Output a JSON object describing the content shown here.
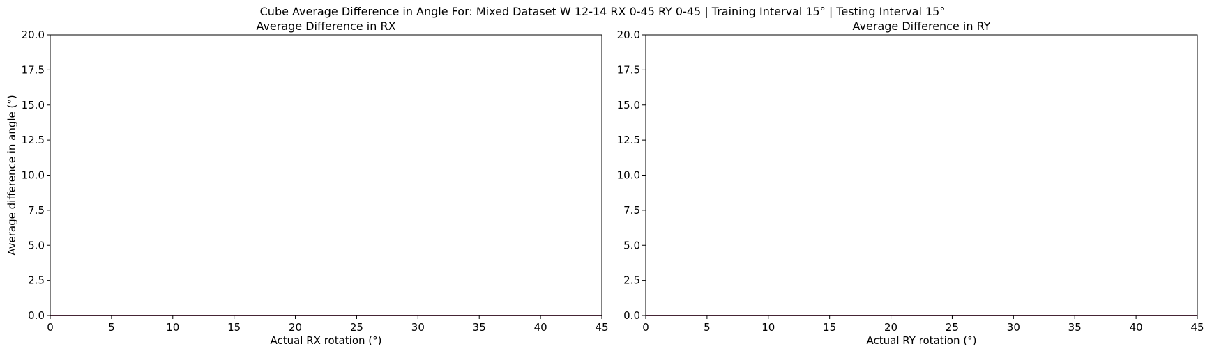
{
  "figure": {
    "suptitle": "Cube Average Difference in Angle For: Mixed Dataset W 12-14 RX 0-45 RY 0-45 | Training Interval 15° | Testing Interval 15°"
  },
  "chart_data": [
    {
      "type": "line",
      "title": "Average Difference in RX",
      "xlabel": "Actual RX rotation (°)",
      "ylabel": "Average difference in angle (°)",
      "xlim": [
        0,
        45
      ],
      "ylim": [
        0,
        20
      ],
      "xticks": [
        0,
        5,
        10,
        15,
        20,
        25,
        30,
        35,
        40,
        45
      ],
      "yticks": [
        0.0,
        2.5,
        5.0,
        7.5,
        10.0,
        12.5,
        15.0,
        17.5,
        20.0
      ],
      "grid": false,
      "series": [
        {
          "x": [
            0,
            15,
            30,
            45
          ],
          "y": [
            0,
            0,
            0,
            0
          ],
          "color": "#8a4a6a"
        }
      ]
    },
    {
      "type": "line",
      "title": "Average Difference in RY",
      "xlabel": "Actual RY rotation (°)",
      "ylabel": "",
      "xlim": [
        0,
        45
      ],
      "ylim": [
        0,
        20
      ],
      "xticks": [
        0,
        5,
        10,
        15,
        20,
        25,
        30,
        35,
        40,
        45
      ],
      "yticks": [
        0.0,
        2.5,
        5.0,
        7.5,
        10.0,
        12.5,
        15.0,
        17.5,
        20.0
      ],
      "grid": false,
      "series": [
        {
          "x": [
            0,
            15,
            30,
            45
          ],
          "y": [
            0,
            0,
            0,
            0
          ],
          "color": "#8a4a6a"
        }
      ]
    }
  ]
}
